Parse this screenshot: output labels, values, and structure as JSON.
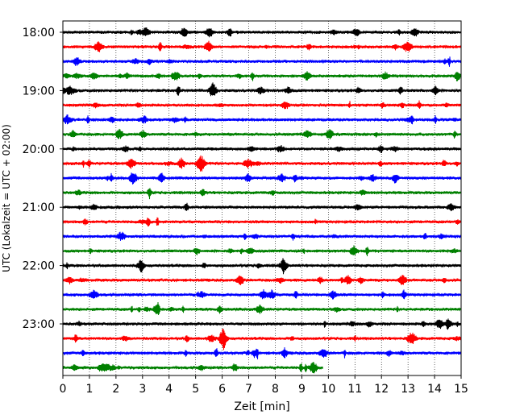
{
  "chart_data": {
    "type": "line",
    "title": "",
    "xlabel": "Zeit  [min]",
    "ylabel": "UTC (Lokalzeit = UTC + 02:00)",
    "xlim": [
      0,
      15
    ],
    "x_ticks": [
      0,
      1,
      2,
      3,
      4,
      5,
      6,
      7,
      8,
      9,
      10,
      11,
      12,
      13,
      14,
      15
    ],
    "x_tick_labels": [
      "0",
      "1",
      "2",
      "3",
      "4",
      "5",
      "6",
      "7",
      "8",
      "9",
      "10",
      "11",
      "12",
      "13",
      "14",
      "15"
    ],
    "y_tick_labels": [
      "18:00",
      "19:00",
      "20:00",
      "21:00",
      "22:00",
      "23:00"
    ],
    "y_tick_traces": [
      0,
      4,
      8,
      12,
      16,
      20
    ],
    "grid": "vertical dotted",
    "trace_colors": [
      "#000000",
      "#ff0000",
      "#0000ff",
      "#008000"
    ],
    "traces": [
      {
        "start": "18:00",
        "minutes": 15,
        "color": "#000000"
      },
      {
        "start": "18:15",
        "minutes": 15,
        "color": "#ff0000"
      },
      {
        "start": "18:30",
        "minutes": 15,
        "color": "#0000ff"
      },
      {
        "start": "18:45",
        "minutes": 15,
        "color": "#008000"
      },
      {
        "start": "19:00",
        "minutes": 15,
        "color": "#000000"
      },
      {
        "start": "19:15",
        "minutes": 15,
        "color": "#ff0000"
      },
      {
        "start": "19:30",
        "minutes": 15,
        "color": "#0000ff"
      },
      {
        "start": "19:45",
        "minutes": 15,
        "color": "#008000"
      },
      {
        "start": "20:00",
        "minutes": 15,
        "color": "#000000"
      },
      {
        "start": "20:15",
        "minutes": 15,
        "color": "#ff0000"
      },
      {
        "start": "20:30",
        "minutes": 15,
        "color": "#0000ff"
      },
      {
        "start": "20:45",
        "minutes": 15,
        "color": "#008000"
      },
      {
        "start": "21:00",
        "minutes": 15,
        "color": "#000000"
      },
      {
        "start": "21:15",
        "minutes": 15,
        "color": "#ff0000"
      },
      {
        "start": "21:30",
        "minutes": 15,
        "color": "#0000ff"
      },
      {
        "start": "21:45",
        "minutes": 15,
        "color": "#008000"
      },
      {
        "start": "22:00",
        "minutes": 15,
        "color": "#000000"
      },
      {
        "start": "22:15",
        "minutes": 15,
        "color": "#ff0000"
      },
      {
        "start": "22:30",
        "minutes": 15,
        "color": "#0000ff"
      },
      {
        "start": "22:45",
        "minutes": 15,
        "color": "#008000"
      },
      {
        "start": "23:00",
        "minutes": 15,
        "color": "#000000"
      },
      {
        "start": "23:15",
        "minutes": 15,
        "color": "#ff0000"
      },
      {
        "start": "23:30",
        "minutes": 15,
        "color": "#0000ff"
      },
      {
        "start": "23:45",
        "minutes": 9.8,
        "color": "#008000"
      }
    ]
  }
}
